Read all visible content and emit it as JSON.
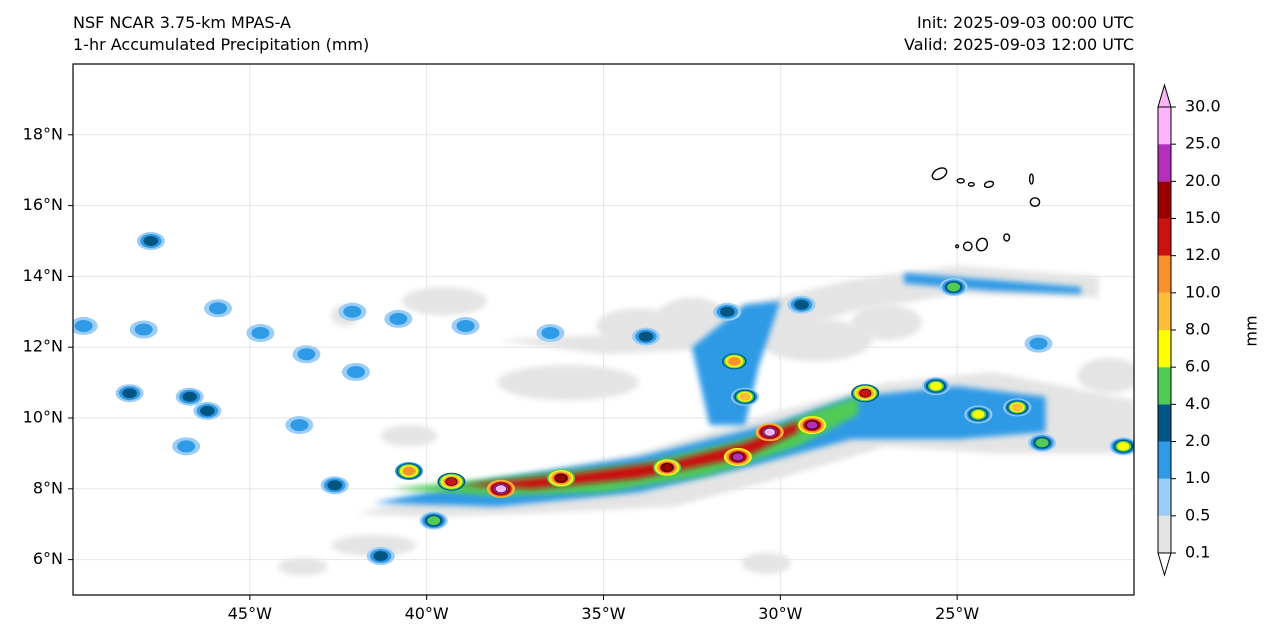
{
  "header": {
    "model": "NSF NCAR 3.75-km MPAS-A",
    "field": "1-hr Accumulated Precipitation (mm)",
    "init": "Init: 2025-09-03 00:00 UTC",
    "valid": "Valid: 2025-09-03 12:00 UTC"
  },
  "map": {
    "extent": {
      "lon": [
        -50,
        -20
      ],
      "lat": [
        5,
        20
      ]
    },
    "lat_ticks": [
      {
        "lat": 6,
        "label": "6°N"
      },
      {
        "lat": 8,
        "label": "8°N"
      },
      {
        "lat": 10,
        "label": "10°N"
      },
      {
        "lat": 12,
        "label": "12°N"
      },
      {
        "lat": 14,
        "label": "14°N"
      },
      {
        "lat": 16,
        "label": "16°N"
      },
      {
        "lat": 18,
        "label": "18°N"
      }
    ],
    "lon_ticks": [
      {
        "lon": -45,
        "label": "45°W"
      },
      {
        "lon": -40,
        "label": "40°W"
      },
      {
        "lon": -35,
        "label": "35°W"
      },
      {
        "lon": -30,
        "label": "30°W"
      },
      {
        "lon": -25,
        "label": "25°W"
      }
    ],
    "precip_bands": [
      {
        "name": "band-trace",
        "level": 0.1,
        "polygon": [
          [
            -42,
            7.3
          ],
          [
            -38,
            8.2
          ],
          [
            -34,
            9.0
          ],
          [
            -30,
            10.2
          ],
          [
            -27,
            11.0
          ],
          [
            -24,
            11.3
          ],
          [
            -20,
            10.5
          ],
          [
            -20,
            9.0
          ],
          [
            -24,
            9.0
          ],
          [
            -27,
            9.2
          ],
          [
            -30,
            8.3
          ],
          [
            -33,
            7.5
          ],
          [
            -37,
            7.3
          ],
          [
            -40,
            7.2
          ]
        ]
      },
      {
        "name": "band-trace-north",
        "level": 0.1,
        "polygon": [
          [
            -38,
            12.2
          ],
          [
            -34,
            12.4
          ],
          [
            -31,
            13.2
          ],
          [
            -28,
            13.9
          ],
          [
            -25,
            14.3
          ],
          [
            -21,
            14.0
          ],
          [
            -21,
            13.4
          ],
          [
            -25,
            13.5
          ],
          [
            -28,
            13.0
          ],
          [
            -31,
            12.0
          ],
          [
            -35,
            11.8
          ]
        ]
      },
      {
        "name": "band-light",
        "level": 1.0,
        "polygon": [
          [
            -41.5,
            7.6
          ],
          [
            -38,
            8.3
          ],
          [
            -34,
            8.9
          ],
          [
            -30,
            9.9
          ],
          [
            -28,
            10.6
          ],
          [
            -25,
            10.9
          ],
          [
            -22.5,
            10.6
          ],
          [
            -22.5,
            9.6
          ],
          [
            -25,
            9.4
          ],
          [
            -28,
            9.4
          ],
          [
            -31,
            8.6
          ],
          [
            -34,
            7.9
          ],
          [
            -38,
            7.5
          ]
        ]
      },
      {
        "name": "band-light-arm",
        "level": 1.0,
        "polygon": [
          [
            -32.5,
            12.0
          ],
          [
            -31,
            13.2
          ],
          [
            -30,
            13.3
          ],
          [
            -30.6,
            11.5
          ],
          [
            -31.0,
            9.8
          ],
          [
            -32.0,
            9.8
          ]
        ]
      },
      {
        "name": "band-light-north",
        "level": 1.0,
        "polygon": [
          [
            -26.5,
            14.1
          ],
          [
            -24,
            13.9
          ],
          [
            -21.5,
            13.7
          ],
          [
            -21.5,
            13.5
          ],
          [
            -24,
            13.6
          ],
          [
            -26.5,
            13.8
          ]
        ]
      },
      {
        "name": "band-heavy",
        "level": 4.0,
        "polygon": [
          [
            -41,
            8.0
          ],
          [
            -37,
            8.4
          ],
          [
            -34,
            8.7
          ],
          [
            -31,
            9.4
          ],
          [
            -29,
            10.2
          ],
          [
            -27.8,
            10.6
          ],
          [
            -27.8,
            10.1
          ],
          [
            -29.5,
            9.2
          ],
          [
            -32,
            8.4
          ],
          [
            -35,
            7.9
          ],
          [
            -38,
            7.8
          ]
        ]
      },
      {
        "name": "band-intense",
        "level": 12.0,
        "polygon": [
          [
            -39,
            8.1
          ],
          [
            -36,
            8.4
          ],
          [
            -33,
            8.8
          ],
          [
            -31,
            9.3
          ],
          [
            -29.5,
            9.9
          ],
          [
            -29.5,
            9.6
          ],
          [
            -31,
            8.9
          ],
          [
            -34,
            8.3
          ],
          [
            -37,
            8.0
          ]
        ]
      }
    ],
    "cells": [
      {
        "lon": -37.9,
        "lat": 8.0,
        "level": 25.0
      },
      {
        "lon": -30.3,
        "lat": 9.6,
        "level": 25.0
      },
      {
        "lon": -29.1,
        "lat": 9.8,
        "level": 20.0
      },
      {
        "lon": -31.2,
        "lat": 8.9,
        "level": 20.0
      },
      {
        "lon": -33.2,
        "lat": 8.6,
        "level": 15.0
      },
      {
        "lon": -36.2,
        "lat": 8.3,
        "level": 15.0
      },
      {
        "lon": -39.3,
        "lat": 8.2,
        "level": 12.0
      },
      {
        "lon": -40.5,
        "lat": 8.5,
        "level": 10.0
      },
      {
        "lon": -27.6,
        "lat": 10.7,
        "level": 12.0
      },
      {
        "lon": -31.3,
        "lat": 11.6,
        "level": 10.0
      },
      {
        "lon": -31.0,
        "lat": 10.6,
        "level": 8.0
      },
      {
        "lon": -25.6,
        "lat": 10.9,
        "level": 6.0
      },
      {
        "lon": -23.3,
        "lat": 10.3,
        "level": 8.0
      },
      {
        "lon": -24.4,
        "lat": 10.1,
        "level": 6.0
      },
      {
        "lon": -22.6,
        "lat": 9.3,
        "level": 4.0
      },
      {
        "lon": -20.3,
        "lat": 9.2,
        "level": 6.0
      },
      {
        "lon": -25.1,
        "lat": 13.7,
        "level": 4.0
      },
      {
        "lon": -29.4,
        "lat": 13.2,
        "level": 2.0
      },
      {
        "lon": -31.5,
        "lat": 13.0,
        "level": 2.0
      },
      {
        "lon": -33.8,
        "lat": 12.3,
        "level": 2.0
      },
      {
        "lon": -39.8,
        "lat": 7.1,
        "level": 4.0
      },
      {
        "lon": -41.3,
        "lat": 6.1,
        "level": 2.0
      },
      {
        "lon": -42.6,
        "lat": 8.1,
        "level": 2.0
      },
      {
        "lon": -47.8,
        "lat": 15.0,
        "level": 2.0
      },
      {
        "lon": -48.0,
        "lat": 12.5,
        "level": 1.0
      },
      {
        "lon": -48.4,
        "lat": 10.7,
        "level": 2.0
      },
      {
        "lon": -46.7,
        "lat": 10.6,
        "level": 2.0
      },
      {
        "lon": -46.2,
        "lat": 10.2,
        "level": 2.0
      },
      {
        "lon": -45.9,
        "lat": 13.1,
        "level": 1.0
      },
      {
        "lon": -44.7,
        "lat": 12.4,
        "level": 1.0
      },
      {
        "lon": -43.4,
        "lat": 11.8,
        "level": 1.0
      },
      {
        "lon": -42.0,
        "lat": 11.3,
        "level": 1.0
      },
      {
        "lon": -40.8,
        "lat": 12.8,
        "level": 1.0
      },
      {
        "lon": -38.9,
        "lat": 12.6,
        "level": 1.0
      },
      {
        "lon": -36.5,
        "lat": 12.4,
        "level": 1.0
      },
      {
        "lon": -49.7,
        "lat": 12.6,
        "level": 1.0
      },
      {
        "lon": -46.8,
        "lat": 9.2,
        "level": 1.0
      },
      {
        "lon": -43.6,
        "lat": 9.8,
        "level": 1.0
      },
      {
        "lon": -42.1,
        "lat": 13.0,
        "level": 1.0
      },
      {
        "lon": -22.7,
        "lat": 12.1,
        "level": 1.0
      }
    ],
    "cloud_patches": [
      [
        -36,
        11.0,
        2.0,
        0.5
      ],
      [
        -34,
        12.6,
        1.2,
        0.5
      ],
      [
        -32.5,
        12.8,
        1.0,
        0.6
      ],
      [
        -29,
        12.2,
        1.6,
        0.6
      ],
      [
        -27,
        12.7,
        1.0,
        0.5
      ],
      [
        -39.5,
        13.3,
        1.2,
        0.4
      ],
      [
        -42.3,
        12.9,
        0.4,
        0.3
      ],
      [
        -40.5,
        9.5,
        0.8,
        0.3
      ],
      [
        -41.5,
        6.4,
        1.2,
        0.3
      ],
      [
        -20.7,
        11.2,
        0.9,
        0.5
      ],
      [
        -30.4,
        5.9,
        0.7,
        0.3
      ],
      [
        -43.5,
        5.8,
        0.7,
        0.25
      ]
    ],
    "islands": [
      {
        "lon": -25.5,
        "lat": 16.9,
        "rx": 0.22,
        "ry": 0.14,
        "rot": -30
      },
      {
        "lon": -24.9,
        "lat": 16.7,
        "rx": 0.1,
        "ry": 0.06,
        "rot": 0
      },
      {
        "lon": -24.6,
        "lat": 16.6,
        "rx": 0.08,
        "ry": 0.05,
        "rot": 0
      },
      {
        "lon": -24.1,
        "lat": 16.6,
        "rx": 0.13,
        "ry": 0.08,
        "rot": -15
      },
      {
        "lon": -22.9,
        "lat": 16.75,
        "rx": 0.05,
        "ry": 0.14,
        "rot": 0
      },
      {
        "lon": -22.8,
        "lat": 16.1,
        "rx": 0.13,
        "ry": 0.12,
        "rot": 0
      },
      {
        "lon": -24.3,
        "lat": 14.9,
        "rx": 0.15,
        "ry": 0.18,
        "rot": 20
      },
      {
        "lon": -23.6,
        "lat": 15.1,
        "rx": 0.08,
        "ry": 0.1,
        "rot": 0
      },
      {
        "lon": -24.7,
        "lat": 14.85,
        "rx": 0.12,
        "ry": 0.12,
        "rot": 0
      },
      {
        "lon": -25.0,
        "lat": 14.85,
        "rx": 0.04,
        "ry": 0.04,
        "rot": 0
      }
    ]
  },
  "colorbar": {
    "unit_label": "mm",
    "levels": [
      0.1,
      0.5,
      1.0,
      2.0,
      4.0,
      6.0,
      8.0,
      10.0,
      12.0,
      15.0,
      20.0,
      25.0,
      30.0
    ],
    "labels": [
      "0.1",
      "0.5",
      "1.0",
      "2.0",
      "4.0",
      "6.0",
      "8.0",
      "10.0",
      "12.0",
      "15.0",
      "20.0",
      "25.0",
      "30.0"
    ],
    "colors": [
      "#e4e4e4",
      "#9ccdf6",
      "#2f9ae6",
      "#005583",
      "#4fcb56",
      "#ffff00",
      "#ffbc3b",
      "#f7912d",
      "#cc1111",
      "#990000",
      "#b52fbc",
      "#ffb4fa"
    ],
    "under_color": "#ffffff",
    "over_color": "#ffb4fa"
  }
}
